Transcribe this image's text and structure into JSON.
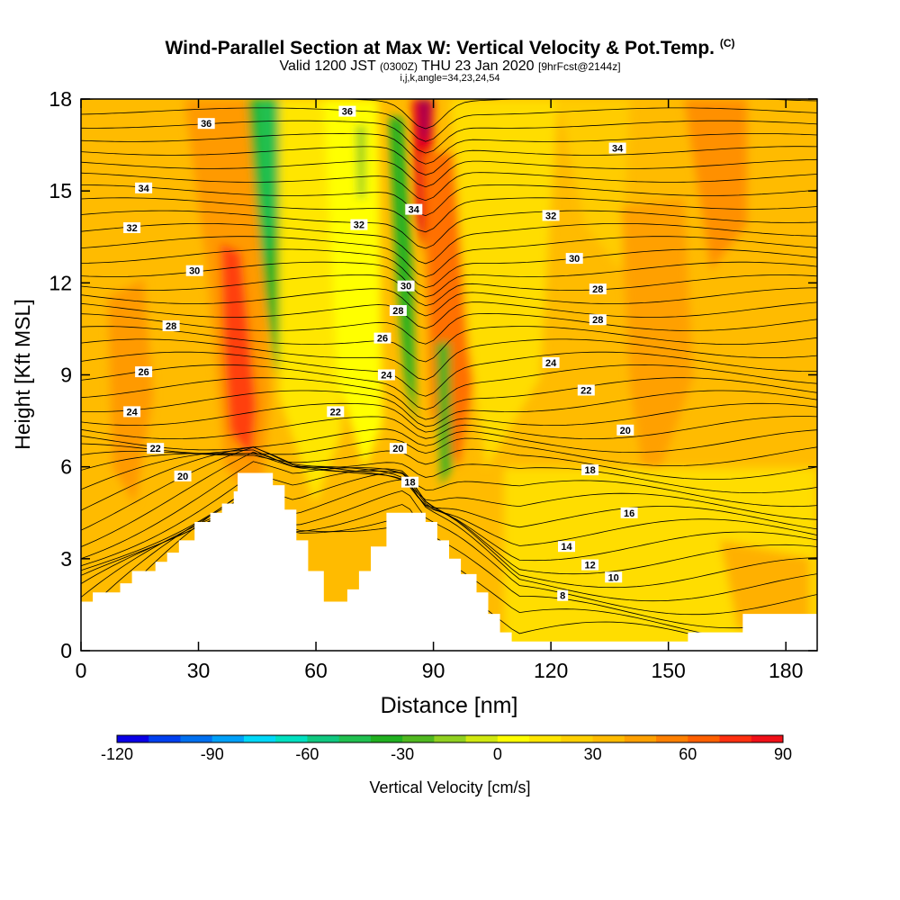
{
  "title": {
    "main": "Wind-Parallel Section at Max W: Vertical Velocity & Pot.Temp.",
    "mark": "(C)",
    "valid": "Valid 1200 JST",
    "valid_utc": "(0300Z)",
    "date": "THU 23 Jan 2020",
    "fcst": "[9hrFcst@2144z]",
    "indices": "i,j,k,angle=34,23,24,54"
  },
  "chart_data": {
    "type": "heatmap",
    "xlabel": "Distance [nm]",
    "ylabel": "Height [Kft MSL]",
    "xlim": [
      0,
      188
    ],
    "ylim": [
      0,
      18
    ],
    "xticks": [
      0,
      30,
      60,
      90,
      120,
      150,
      180
    ],
    "yticks": [
      0,
      3,
      6,
      9,
      12,
      15,
      18
    ],
    "grid": false,
    "colorbar": {
      "label": "Vertical Velocity [cm/s]",
      "ticks": [
        -120,
        -90,
        -60,
        -30,
        0,
        30,
        60,
        90
      ],
      "min": -120,
      "max": 90,
      "step": 10,
      "colors": [
        "#0a00e6",
        "#0040f0",
        "#0070f0",
        "#00a0f8",
        "#00d8f8",
        "#00e0c0",
        "#10c880",
        "#20c050",
        "#20b020",
        "#50b820",
        "#90d020",
        "#d0e810",
        "#ffff00",
        "#ffe600",
        "#ffd000",
        "#ffbb00",
        "#ffa000",
        "#ff8000",
        "#ff6000",
        "#ff3010",
        "#f01018",
        "#c80028",
        "#a00050",
        "#800070",
        "#500090"
      ]
    },
    "terrain": [
      [
        0,
        1.6
      ],
      [
        3,
        1.6
      ],
      [
        3,
        1.9
      ],
      [
        10,
        1.9
      ],
      [
        10,
        2.2
      ],
      [
        13,
        2.2
      ],
      [
        13,
        2.6
      ],
      [
        19,
        2.6
      ],
      [
        19,
        2.9
      ],
      [
        22,
        2.9
      ],
      [
        22,
        3.2
      ],
      [
        25,
        3.2
      ],
      [
        25,
        3.6
      ],
      [
        29,
        3.6
      ],
      [
        29,
        4.2
      ],
      [
        33,
        4.2
      ],
      [
        33,
        4.5
      ],
      [
        36,
        4.5
      ],
      [
        36,
        4.8
      ],
      [
        39,
        4.8
      ],
      [
        39,
        5.2
      ],
      [
        40,
        5.2
      ],
      [
        40,
        5.8
      ],
      [
        49,
        5.8
      ],
      [
        49,
        5.4
      ],
      [
        52,
        5.4
      ],
      [
        52,
        4.6
      ],
      [
        55,
        4.6
      ],
      [
        55,
        3.6
      ],
      [
        58,
        3.6
      ],
      [
        58,
        2.6
      ],
      [
        62,
        2.6
      ],
      [
        62,
        1.6
      ],
      [
        68,
        1.6
      ],
      [
        68,
        2.0
      ],
      [
        71,
        2.0
      ],
      [
        71,
        2.6
      ],
      [
        74,
        2.6
      ],
      [
        74,
        3.4
      ],
      [
        78,
        3.4
      ],
      [
        78,
        4.5
      ],
      [
        88,
        4.5
      ],
      [
        88,
        4.2
      ],
      [
        91,
        4.2
      ],
      [
        91,
        3.6
      ],
      [
        94,
        3.6
      ],
      [
        94,
        3.0
      ],
      [
        97,
        3.0
      ],
      [
        97,
        2.5
      ],
      [
        101,
        2.5
      ],
      [
        101,
        1.9
      ],
      [
        104,
        1.9
      ],
      [
        104,
        1.2
      ],
      [
        107,
        1.2
      ],
      [
        107,
        0.6
      ],
      [
        110,
        0.6
      ],
      [
        110,
        0.3
      ],
      [
        155,
        0.3
      ],
      [
        155,
        0.6
      ],
      [
        169,
        0.6
      ],
      [
        169,
        1.2
      ],
      [
        188,
        1.2
      ]
    ],
    "theta_labels": [
      {
        "v": "36",
        "x": 32,
        "y": 17.2
      },
      {
        "v": "36",
        "x": 68,
        "y": 17.6
      },
      {
        "v": "34",
        "x": 16,
        "y": 15.1
      },
      {
        "v": "34",
        "x": 85,
        "y": 14.4
      },
      {
        "v": "34",
        "x": 137,
        "y": 16.4
      },
      {
        "v": "32",
        "x": 13,
        "y": 13.8
      },
      {
        "v": "32",
        "x": 71,
        "y": 13.9
      },
      {
        "v": "32",
        "x": 120,
        "y": 14.2
      },
      {
        "v": "30",
        "x": 29,
        "y": 12.4
      },
      {
        "v": "30",
        "x": 83,
        "y": 11.9
      },
      {
        "v": "30",
        "x": 126,
        "y": 12.8
      },
      {
        "v": "28",
        "x": 23,
        "y": 10.6
      },
      {
        "v": "28",
        "x": 81,
        "y": 11.1
      },
      {
        "v": "28",
        "x": 132,
        "y": 11.8
      },
      {
        "v": "28",
        "x": 132,
        "y": 10.8
      },
      {
        "v": "26",
        "x": 16,
        "y": 9.1
      },
      {
        "v": "26",
        "x": 77,
        "y": 10.2
      },
      {
        "v": "24",
        "x": 13,
        "y": 7.8
      },
      {
        "v": "24",
        "x": 78,
        "y": 9.0
      },
      {
        "v": "24",
        "x": 120,
        "y": 9.4
      },
      {
        "v": "22",
        "x": 19,
        "y": 6.6
      },
      {
        "v": "22",
        "x": 65,
        "y": 7.8
      },
      {
        "v": "22",
        "x": 129,
        "y": 8.5
      },
      {
        "v": "20",
        "x": 26,
        "y": 5.7
      },
      {
        "v": "20",
        "x": 81,
        "y": 6.6
      },
      {
        "v": "20",
        "x": 139,
        "y": 7.2
      },
      {
        "v": "18",
        "x": 84,
        "y": 5.5
      },
      {
        "v": "18",
        "x": 130,
        "y": 5.9
      },
      {
        "v": "16",
        "x": 140,
        "y": 4.5
      },
      {
        "v": "14",
        "x": 124,
        "y": 3.4
      },
      {
        "v": "12",
        "x": 130,
        "y": 2.8
      },
      {
        "v": "10",
        "x": 136,
        "y": 2.4
      },
      {
        "v": "8",
        "x": 123,
        "y": 1.8
      }
    ]
  }
}
